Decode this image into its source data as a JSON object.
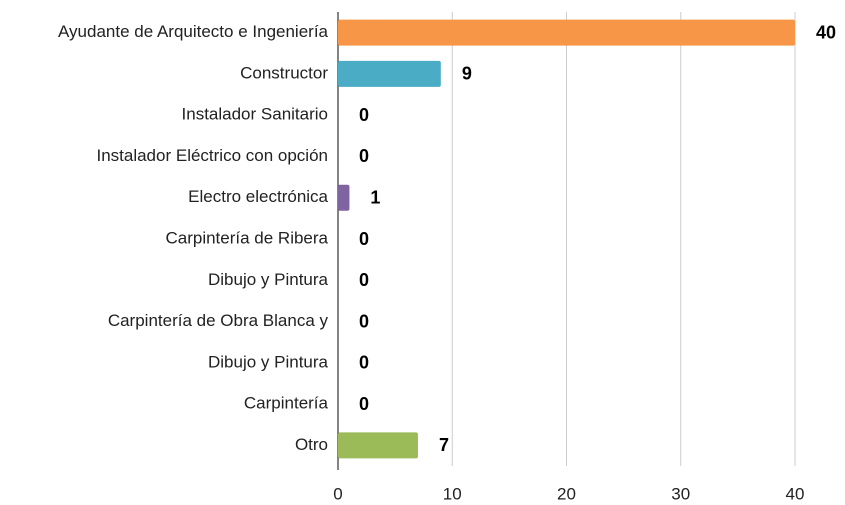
{
  "chart_data": {
    "type": "bar",
    "orientation": "horizontal",
    "categories": [
      "Ayudante de Arquitecto e Ingeniería",
      "Constructor",
      "Instalador Sanitario",
      "Instalador Eléctrico con opción",
      "Electro electrónica",
      "Carpintería de Ribera",
      "Dibujo y Pintura",
      "Carpintería de Obra Blanca y",
      "Dibujo y Pintura",
      "Carpintería",
      "Otro"
    ],
    "values": [
      40,
      9,
      0,
      0,
      1,
      0,
      0,
      0,
      0,
      0,
      7
    ],
    "colors": [
      "#f79646",
      "#4bacc6",
      "#f79646",
      "#4bacc6",
      "#8064a2",
      "#f79646",
      "#4bacc6",
      "#8064a2",
      "#f79646",
      "#4bacc6",
      "#9bbb59"
    ],
    "xlim": [
      0,
      40
    ],
    "xticks": [
      0,
      10,
      20,
      30,
      40
    ],
    "grid": true
  }
}
